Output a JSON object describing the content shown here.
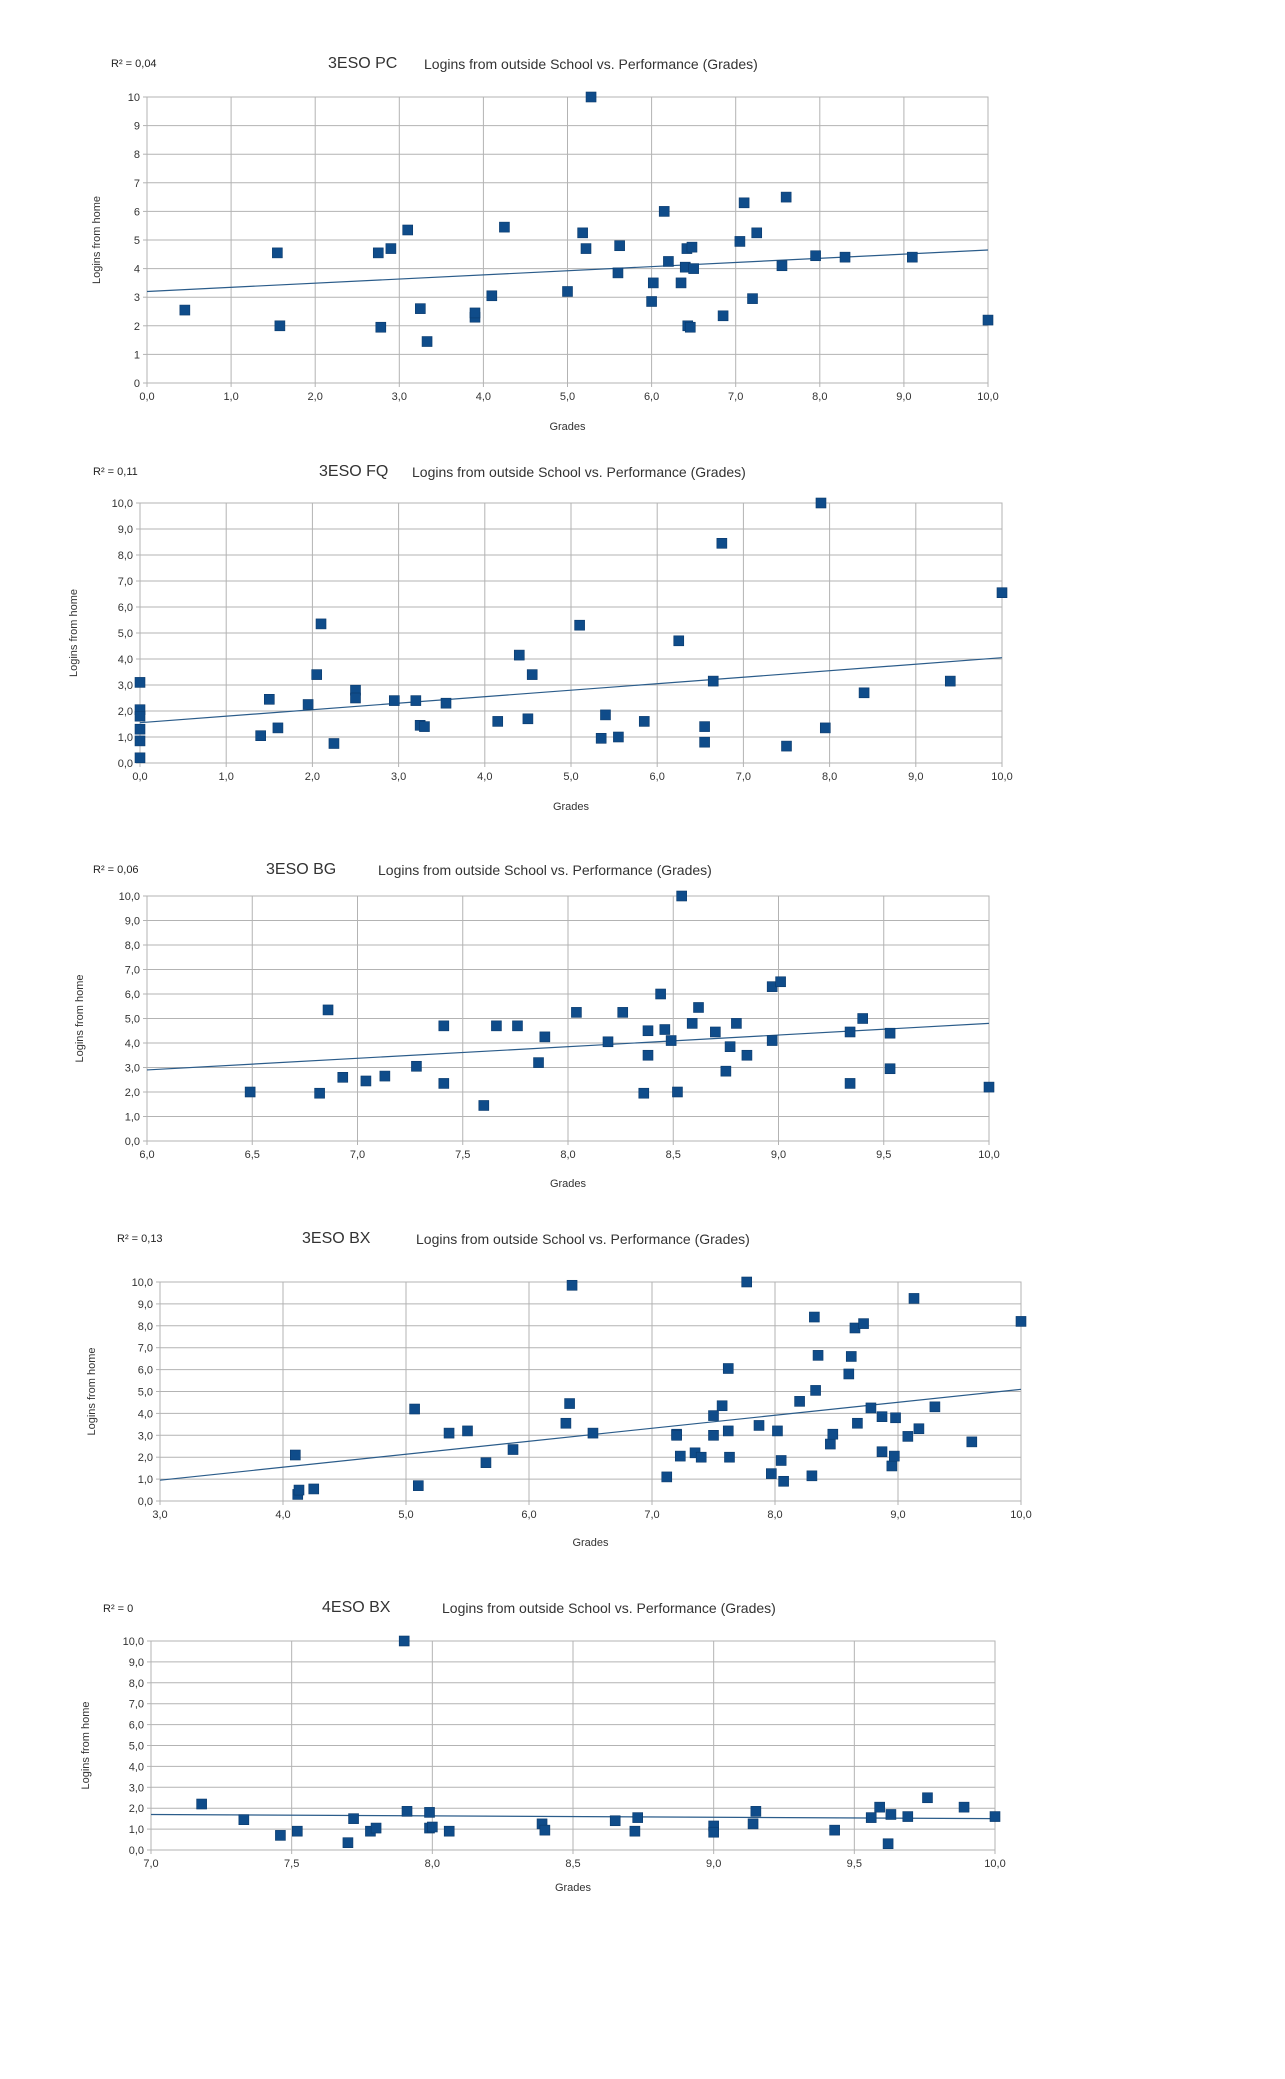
{
  "chart_data": [
    {
      "type": "scatter",
      "code": "3ESO PC",
      "title": "Logins from outside School vs. Performance (Grades)",
      "r2": "R² = 0,04",
      "xlabel": "Grades",
      "ylabel": "Logins from home",
      "xlim": [
        0,
        10
      ],
      "ylim": [
        0,
        10
      ],
      "xticks": [
        "0,0",
        "1,0",
        "2,0",
        "3,0",
        "4,0",
        "5,0",
        "6,0",
        "7,0",
        "8,0",
        "9,0",
        "10,0"
      ],
      "yticks": [
        "0",
        "1",
        "2",
        "3",
        "4",
        "5",
        "6",
        "7",
        "8",
        "9",
        "10"
      ],
      "grid": true,
      "marker_color": "#0f4c8a",
      "trendline": {
        "x": [
          0,
          10
        ],
        "y": [
          3.2,
          4.65
        ]
      },
      "points": [
        [
          0.45,
          2.55
        ],
        [
          1.55,
          4.55
        ],
        [
          1.58,
          2.0
        ],
        [
          2.75,
          4.55
        ],
        [
          2.78,
          1.95
        ],
        [
          2.9,
          4.7
        ],
        [
          3.1,
          5.35
        ],
        [
          3.25,
          2.6
        ],
        [
          3.33,
          1.45
        ],
        [
          3.9,
          2.3
        ],
        [
          3.9,
          2.45
        ],
        [
          4.1,
          3.05
        ],
        [
          4.25,
          5.45
        ],
        [
          5.0,
          3.2
        ],
        [
          5.18,
          5.25
        ],
        [
          5.22,
          4.7
        ],
        [
          5.28,
          10.0
        ],
        [
          5.6,
          3.85
        ],
        [
          5.62,
          4.8
        ],
        [
          6.0,
          2.85
        ],
        [
          6.02,
          3.5
        ],
        [
          6.15,
          6.0
        ],
        [
          6.2,
          4.25
        ],
        [
          6.35,
          3.5
        ],
        [
          6.4,
          4.05
        ],
        [
          6.42,
          4.7
        ],
        [
          6.43,
          2.0
        ],
        [
          6.46,
          1.95
        ],
        [
          6.48,
          4.75
        ],
        [
          6.5,
          4.0
        ],
        [
          6.85,
          2.35
        ],
        [
          7.05,
          4.95
        ],
        [
          7.1,
          6.3
        ],
        [
          7.2,
          2.95
        ],
        [
          7.25,
          5.25
        ],
        [
          7.55,
          4.1
        ],
        [
          7.6,
          6.5
        ],
        [
          7.95,
          4.45
        ],
        [
          8.3,
          4.4
        ],
        [
          9.1,
          4.4
        ],
        [
          10.0,
          2.2
        ]
      ]
    },
    {
      "type": "scatter",
      "code": "3ESO FQ",
      "title": "Logins from outside School vs. Performance (Grades)",
      "r2": "R² = 0,11",
      "xlabel": "Grades",
      "ylabel": "Logins from home",
      "xlim": [
        0,
        10
      ],
      "ylim": [
        0,
        10
      ],
      "xticks": [
        "0,0",
        "1,0",
        "2,0",
        "3,0",
        "4,0",
        "5,0",
        "6,0",
        "7,0",
        "8,0",
        "9,0",
        "10,0"
      ],
      "yticks": [
        "0,0",
        "1,0",
        "2,0",
        "3,0",
        "4,0",
        "5,0",
        "6,0",
        "7,0",
        "8,0",
        "9,0",
        "10,0"
      ],
      "grid": true,
      "marker_color": "#0f4c8a",
      "trendline": {
        "x": [
          0,
          10
        ],
        "y": [
          1.55,
          4.05
        ]
      },
      "points": [
        [
          0.0,
          3.1
        ],
        [
          0.0,
          2.05
        ],
        [
          0.0,
          1.8
        ],
        [
          0.0,
          1.3
        ],
        [
          0.0,
          0.85
        ],
        [
          0.0,
          0.2
        ],
        [
          1.4,
          1.05
        ],
        [
          1.5,
          2.45
        ],
        [
          1.6,
          1.35
        ],
        [
          1.95,
          2.25
        ],
        [
          2.05,
          3.4
        ],
        [
          2.1,
          5.35
        ],
        [
          2.25,
          0.75
        ],
        [
          2.5,
          2.8
        ],
        [
          2.5,
          2.5
        ],
        [
          2.95,
          2.4
        ],
        [
          3.2,
          2.4
        ],
        [
          3.25,
          1.45
        ],
        [
          3.3,
          1.4
        ],
        [
          3.55,
          2.3
        ],
        [
          4.15,
          1.6
        ],
        [
          4.4,
          4.15
        ],
        [
          4.5,
          1.7
        ],
        [
          4.55,
          3.4
        ],
        [
          5.1,
          5.3
        ],
        [
          5.35,
          0.95
        ],
        [
          5.4,
          1.85
        ],
        [
          5.55,
          1.0
        ],
        [
          5.85,
          1.6
        ],
        [
          6.25,
          4.7
        ],
        [
          6.55,
          1.4
        ],
        [
          6.55,
          0.8
        ],
        [
          6.65,
          3.15
        ],
        [
          6.75,
          8.45
        ],
        [
          7.5,
          0.65
        ],
        [
          7.9,
          10.0
        ],
        [
          7.95,
          1.35
        ],
        [
          8.4,
          2.7
        ],
        [
          9.4,
          3.15
        ],
        [
          10.0,
          6.55
        ]
      ]
    },
    {
      "type": "scatter",
      "code": "3ESO BG",
      "title": "Logins from outside School vs. Performance (Grades)",
      "r2": "R² = 0,06",
      "xlabel": "Grades",
      "ylabel": "Logins from home",
      "xlim": [
        6,
        10
      ],
      "ylim": [
        0,
        10
      ],
      "xticks": [
        "6,0",
        "6,5",
        "7,0",
        "7,5",
        "8,0",
        "8,5",
        "9,0",
        "9,5",
        "10,0"
      ],
      "yticks": [
        "0,0",
        "1,0",
        "2,0",
        "3,0",
        "4,0",
        "5,0",
        "6,0",
        "7,0",
        "8,0",
        "9,0",
        "10,0"
      ],
      "grid": true,
      "marker_color": "#0f4c8a",
      "trendline": {
        "x": [
          6,
          10
        ],
        "y": [
          2.9,
          4.8
        ]
      },
      "points": [
        [
          6.49,
          2.0
        ],
        [
          6.82,
          1.95
        ],
        [
          6.86,
          5.35
        ],
        [
          6.93,
          2.6
        ],
        [
          7.04,
          2.45
        ],
        [
          7.13,
          2.65
        ],
        [
          7.28,
          3.05
        ],
        [
          7.41,
          4.7
        ],
        [
          7.41,
          2.35
        ],
        [
          7.6,
          1.45
        ],
        [
          7.66,
          4.7
        ],
        [
          7.76,
          4.7
        ],
        [
          7.86,
          3.2
        ],
        [
          7.89,
          4.25
        ],
        [
          8.04,
          5.25
        ],
        [
          8.19,
          4.05
        ],
        [
          8.26,
          5.25
        ],
        [
          8.36,
          1.95
        ],
        [
          8.38,
          4.5
        ],
        [
          8.38,
          3.5
        ],
        [
          8.44,
          6.0
        ],
        [
          8.46,
          4.55
        ],
        [
          8.49,
          4.1
        ],
        [
          8.52,
          2.0
        ],
        [
          8.54,
          10.0
        ],
        [
          8.59,
          4.8
        ],
        [
          8.62,
          5.45
        ],
        [
          8.7,
          4.45
        ],
        [
          8.75,
          2.85
        ],
        [
          8.77,
          3.85
        ],
        [
          8.8,
          4.8
        ],
        [
          8.85,
          3.5
        ],
        [
          8.97,
          6.3
        ],
        [
          8.97,
          4.1
        ],
        [
          9.01,
          6.5
        ],
        [
          9.34,
          4.45
        ],
        [
          9.34,
          2.35
        ],
        [
          9.4,
          5.0
        ],
        [
          9.53,
          4.4
        ],
        [
          9.53,
          2.95
        ],
        [
          10.0,
          2.2
        ]
      ]
    },
    {
      "type": "scatter",
      "code": "3ESO BX",
      "title": "Logins from outside School vs. Performance (Grades)",
      "r2": "R² = 0,13",
      "xlabel": "Grades",
      "ylabel": "Logins from home",
      "xlim": [
        3,
        10
      ],
      "ylim": [
        0,
        10
      ],
      "xticks": [
        "3,0",
        "4,0",
        "5,0",
        "6,0",
        "7,0",
        "8,0",
        "9,0",
        "10,0"
      ],
      "yticks": [
        "0,0",
        "1,0",
        "2,0",
        "3,0",
        "4,0",
        "5,0",
        "6,0",
        "7,0",
        "8,0",
        "9,0",
        "10,0"
      ],
      "grid": true,
      "marker_color": "#0f4c8a",
      "trendline": {
        "x": [
          3,
          10
        ],
        "y": [
          0.95,
          5.1
        ]
      },
      "points": [
        [
          4.1,
          2.1
        ],
        [
          4.12,
          0.3
        ],
        [
          4.13,
          0.5
        ],
        [
          4.25,
          0.55
        ],
        [
          5.07,
          4.2
        ],
        [
          5.1,
          0.7
        ],
        [
          5.35,
          3.1
        ],
        [
          5.5,
          3.2
        ],
        [
          5.65,
          1.75
        ],
        [
          5.87,
          2.35
        ],
        [
          6.3,
          3.55
        ],
        [
          6.33,
          4.45
        ],
        [
          6.35,
          9.85
        ],
        [
          6.52,
          3.1
        ],
        [
          7.12,
          1.1
        ],
        [
          7.2,
          3.05
        ],
        [
          7.2,
          3.0
        ],
        [
          7.23,
          2.05
        ],
        [
          7.35,
          2.2
        ],
        [
          7.4,
          2.0
        ],
        [
          7.5,
          3.9
        ],
        [
          7.5,
          3.0
        ],
        [
          7.57,
          4.35
        ],
        [
          7.62,
          6.05
        ],
        [
          7.62,
          3.2
        ],
        [
          7.63,
          2.0
        ],
        [
          7.77,
          10.0
        ],
        [
          7.87,
          3.45
        ],
        [
          7.97,
          1.25
        ],
        [
          8.02,
          3.2
        ],
        [
          8.05,
          1.85
        ],
        [
          8.07,
          0.9
        ],
        [
          8.2,
          4.55
        ],
        [
          8.3,
          1.15
        ],
        [
          8.32,
          8.4
        ],
        [
          8.33,
          5.05
        ],
        [
          8.35,
          6.65
        ],
        [
          8.45,
          2.6
        ],
        [
          8.47,
          3.05
        ],
        [
          8.6,
          5.8
        ],
        [
          8.62,
          6.6
        ],
        [
          8.65,
          7.9
        ],
        [
          8.67,
          3.55
        ],
        [
          8.72,
          8.1
        ],
        [
          8.78,
          4.25
        ],
        [
          8.87,
          2.25
        ],
        [
          8.87,
          3.85
        ],
        [
          8.95,
          1.6
        ],
        [
          8.97,
          2.05
        ],
        [
          8.98,
          3.8
        ],
        [
          9.08,
          2.95
        ],
        [
          9.13,
          9.25
        ],
        [
          9.17,
          3.3
        ],
        [
          9.3,
          4.3
        ],
        [
          9.6,
          2.7
        ],
        [
          10.0,
          8.2
        ]
      ]
    },
    {
      "type": "scatter",
      "code": "4ESO BX",
      "title": "Logins from outside School vs. Performance (Grades)",
      "r2": "R² = 0",
      "xlabel": "Grades",
      "ylabel": "Logins from home",
      "xlim": [
        7,
        10
      ],
      "ylim": [
        0,
        10
      ],
      "xticks": [
        "7,0",
        "7,5",
        "8,0",
        "8,5",
        "9,0",
        "9,5",
        "10,0"
      ],
      "yticks": [
        "0,0",
        "1,0",
        "2,0",
        "3,0",
        "4,0",
        "5,0",
        "6,0",
        "7,0",
        "8,0",
        "9,0",
        "10,0"
      ],
      "grid": true,
      "marker_color": "#0f4c8a",
      "trendline": {
        "x": [
          7,
          10
        ],
        "y": [
          1.7,
          1.5
        ]
      },
      "points": [
        [
          7.18,
          2.2
        ],
        [
          7.33,
          1.45
        ],
        [
          7.46,
          0.7
        ],
        [
          7.52,
          0.9
        ],
        [
          7.7,
          0.35
        ],
        [
          7.72,
          1.5
        ],
        [
          7.78,
          0.9
        ],
        [
          7.8,
          1.05
        ],
        [
          7.9,
          10.0
        ],
        [
          7.91,
          1.85
        ],
        [
          7.99,
          1.8
        ],
        [
          7.99,
          1.05
        ],
        [
          8.0,
          1.1
        ],
        [
          8.06,
          0.9
        ],
        [
          8.39,
          1.25
        ],
        [
          8.4,
          0.95
        ],
        [
          8.65,
          1.4
        ],
        [
          8.72,
          0.9
        ],
        [
          8.73,
          1.55
        ],
        [
          9.0,
          1.15
        ],
        [
          9.0,
          0.85
        ],
        [
          9.14,
          1.25
        ],
        [
          9.15,
          1.85
        ],
        [
          9.43,
          0.95
        ],
        [
          9.56,
          1.55
        ],
        [
          9.59,
          2.05
        ],
        [
          9.62,
          0.3
        ],
        [
          9.63,
          1.7
        ],
        [
          9.69,
          1.6
        ],
        [
          9.76,
          2.5
        ],
        [
          9.89,
          2.05
        ],
        [
          10.0,
          1.6
        ]
      ]
    }
  ]
}
